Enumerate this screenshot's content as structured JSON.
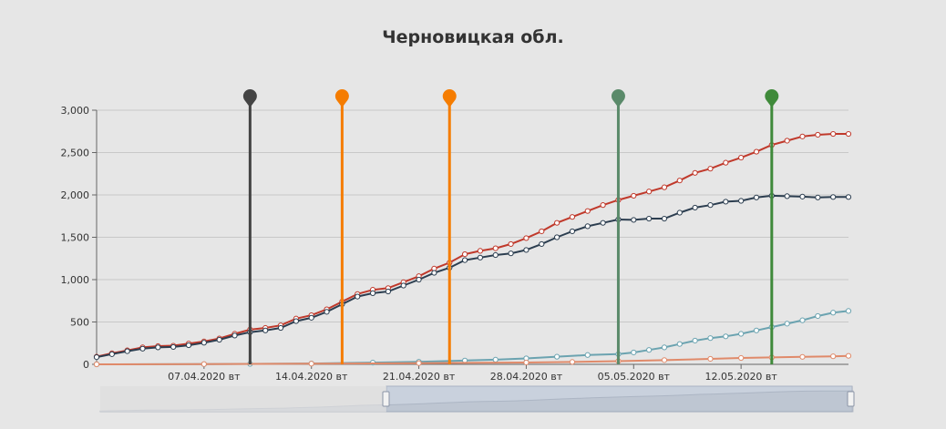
{
  "chart_data": {
    "type": "line",
    "title": "Черновицкая обл.",
    "ylim": [
      0,
      3000
    ],
    "y_ticks": [
      0,
      500,
      1000,
      1500,
      2000,
      2500,
      3000
    ],
    "y_tick_labels": [
      "0",
      "500",
      "1,000",
      "1,500",
      "2,000",
      "2,500",
      "3,000"
    ],
    "x_start": "2020-03-31",
    "x_end": "2020-05-19",
    "x_ticks": [
      "2020-04-07",
      "2020-04-14",
      "2020-04-21",
      "2020-04-28",
      "2020-05-05",
      "2020-05-12"
    ],
    "x_tick_labels": [
      "07.04.2020 вт",
      "14.04.2020 вт",
      "21.04.2020 вт",
      "28.04.2020 вт",
      "05.05.2020 вт",
      "12.05.2020 вт"
    ],
    "grid": true,
    "markers": [
      {
        "date": "2020-04-10",
        "color": "#444444"
      },
      {
        "date": "2020-04-16",
        "color": "#f57c00"
      },
      {
        "date": "2020-04-23",
        "color": "#f57c00"
      },
      {
        "date": "2020-05-04",
        "color": "#5a8a6a"
      },
      {
        "date": "2020-05-14",
        "color": "#3f8a3a"
      }
    ],
    "series": [
      {
        "color": "#c0392b",
        "x": [
          "2020-03-31",
          "2020-04-01",
          "2020-04-02",
          "2020-04-03",
          "2020-04-04",
          "2020-04-05",
          "2020-04-06",
          "2020-04-07",
          "2020-04-08",
          "2020-04-09",
          "2020-04-10",
          "2020-04-11",
          "2020-04-12",
          "2020-04-13",
          "2020-04-14",
          "2020-04-15",
          "2020-04-16",
          "2020-04-17",
          "2020-04-18",
          "2020-04-19",
          "2020-04-20",
          "2020-04-21",
          "2020-04-22",
          "2020-04-23",
          "2020-04-24",
          "2020-04-25",
          "2020-04-26",
          "2020-04-27",
          "2020-04-28",
          "2020-04-29",
          "2020-04-30",
          "2020-05-01",
          "2020-05-02",
          "2020-05-03",
          "2020-05-04",
          "2020-05-05",
          "2020-05-06",
          "2020-05-07",
          "2020-05-08",
          "2020-05-09",
          "2020-05-10",
          "2020-05-11",
          "2020-05-12",
          "2020-05-13",
          "2020-05-14",
          "2020-05-15",
          "2020-05-16",
          "2020-05-17",
          "2020-05-18",
          "2020-05-19"
        ],
        "values": [
          90,
          130,
          165,
          200,
          215,
          220,
          245,
          270,
          305,
          360,
          410,
          430,
          460,
          540,
          580,
          650,
          740,
          830,
          880,
          900,
          970,
          1040,
          1130,
          1200,
          1300,
          1340,
          1370,
          1420,
          1490,
          1570,
          1670,
          1740,
          1810,
          1880,
          1940,
          1990,
          2040,
          2090,
          2170,
          2260,
          2310,
          2380,
          2440,
          2510,
          2590,
          2640,
          2690,
          2710,
          2720,
          2720
        ]
      },
      {
        "color": "#2c3e50",
        "x": [
          "2020-03-31",
          "2020-04-01",
          "2020-04-02",
          "2020-04-03",
          "2020-04-04",
          "2020-04-05",
          "2020-04-06",
          "2020-04-07",
          "2020-04-08",
          "2020-04-09",
          "2020-04-10",
          "2020-04-11",
          "2020-04-12",
          "2020-04-13",
          "2020-04-14",
          "2020-04-15",
          "2020-04-16",
          "2020-04-17",
          "2020-04-18",
          "2020-04-19",
          "2020-04-20",
          "2020-04-21",
          "2020-04-22",
          "2020-04-23",
          "2020-04-24",
          "2020-04-25",
          "2020-04-26",
          "2020-04-27",
          "2020-04-28",
          "2020-04-29",
          "2020-04-30",
          "2020-05-01",
          "2020-05-02",
          "2020-05-03",
          "2020-05-04",
          "2020-05-05",
          "2020-05-06",
          "2020-05-07",
          "2020-05-08",
          "2020-05-09",
          "2020-05-10",
          "2020-05-11",
          "2020-05-12",
          "2020-05-13",
          "2020-05-14",
          "2020-05-15",
          "2020-05-16",
          "2020-05-17",
          "2020-05-18",
          "2020-05-19"
        ],
        "values": [
          85,
          120,
          155,
          185,
          200,
          205,
          225,
          255,
          290,
          340,
          380,
          400,
          430,
          510,
          550,
          620,
          710,
          800,
          840,
          860,
          930,
          1000,
          1080,
          1140,
          1230,
          1260,
          1290,
          1310,
          1350,
          1420,
          1500,
          1570,
          1630,
          1670,
          1710,
          1705,
          1720,
          1720,
          1790,
          1850,
          1880,
          1920,
          1930,
          1970,
          1990,
          1985,
          1980,
          1970,
          1975,
          1975
        ]
      },
      {
        "color": "#6ba3b0",
        "x": [
          "2020-03-31",
          "2020-04-07",
          "2020-04-10",
          "2020-04-14",
          "2020-04-18",
          "2020-04-21",
          "2020-04-24",
          "2020-04-26",
          "2020-04-28",
          "2020-04-30",
          "2020-05-02",
          "2020-05-04",
          "2020-05-05",
          "2020-05-06",
          "2020-05-07",
          "2020-05-08",
          "2020-05-09",
          "2020-05-10",
          "2020-05-11",
          "2020-05-12",
          "2020-05-13",
          "2020-05-14",
          "2020-05-15",
          "2020-05-16",
          "2020-05-17",
          "2020-05-18",
          "2020-05-19"
        ],
        "values": [
          0,
          2,
          5,
          10,
          20,
          30,
          45,
          55,
          70,
          90,
          110,
          120,
          140,
          170,
          200,
          240,
          280,
          310,
          330,
          360,
          400,
          440,
          480,
          520,
          570,
          610,
          630
        ]
      },
      {
        "color": "#e08a6a",
        "x": [
          "2020-03-31",
          "2020-04-07",
          "2020-04-14",
          "2020-04-21",
          "2020-04-28",
          "2020-05-01",
          "2020-05-04",
          "2020-05-07",
          "2020-05-10",
          "2020-05-12",
          "2020-05-14",
          "2020-05-16",
          "2020-05-18",
          "2020-05-19"
        ],
        "values": [
          0,
          3,
          8,
          14,
          22,
          28,
          38,
          50,
          65,
          75,
          82,
          88,
          95,
          100
        ]
      }
    ]
  }
}
